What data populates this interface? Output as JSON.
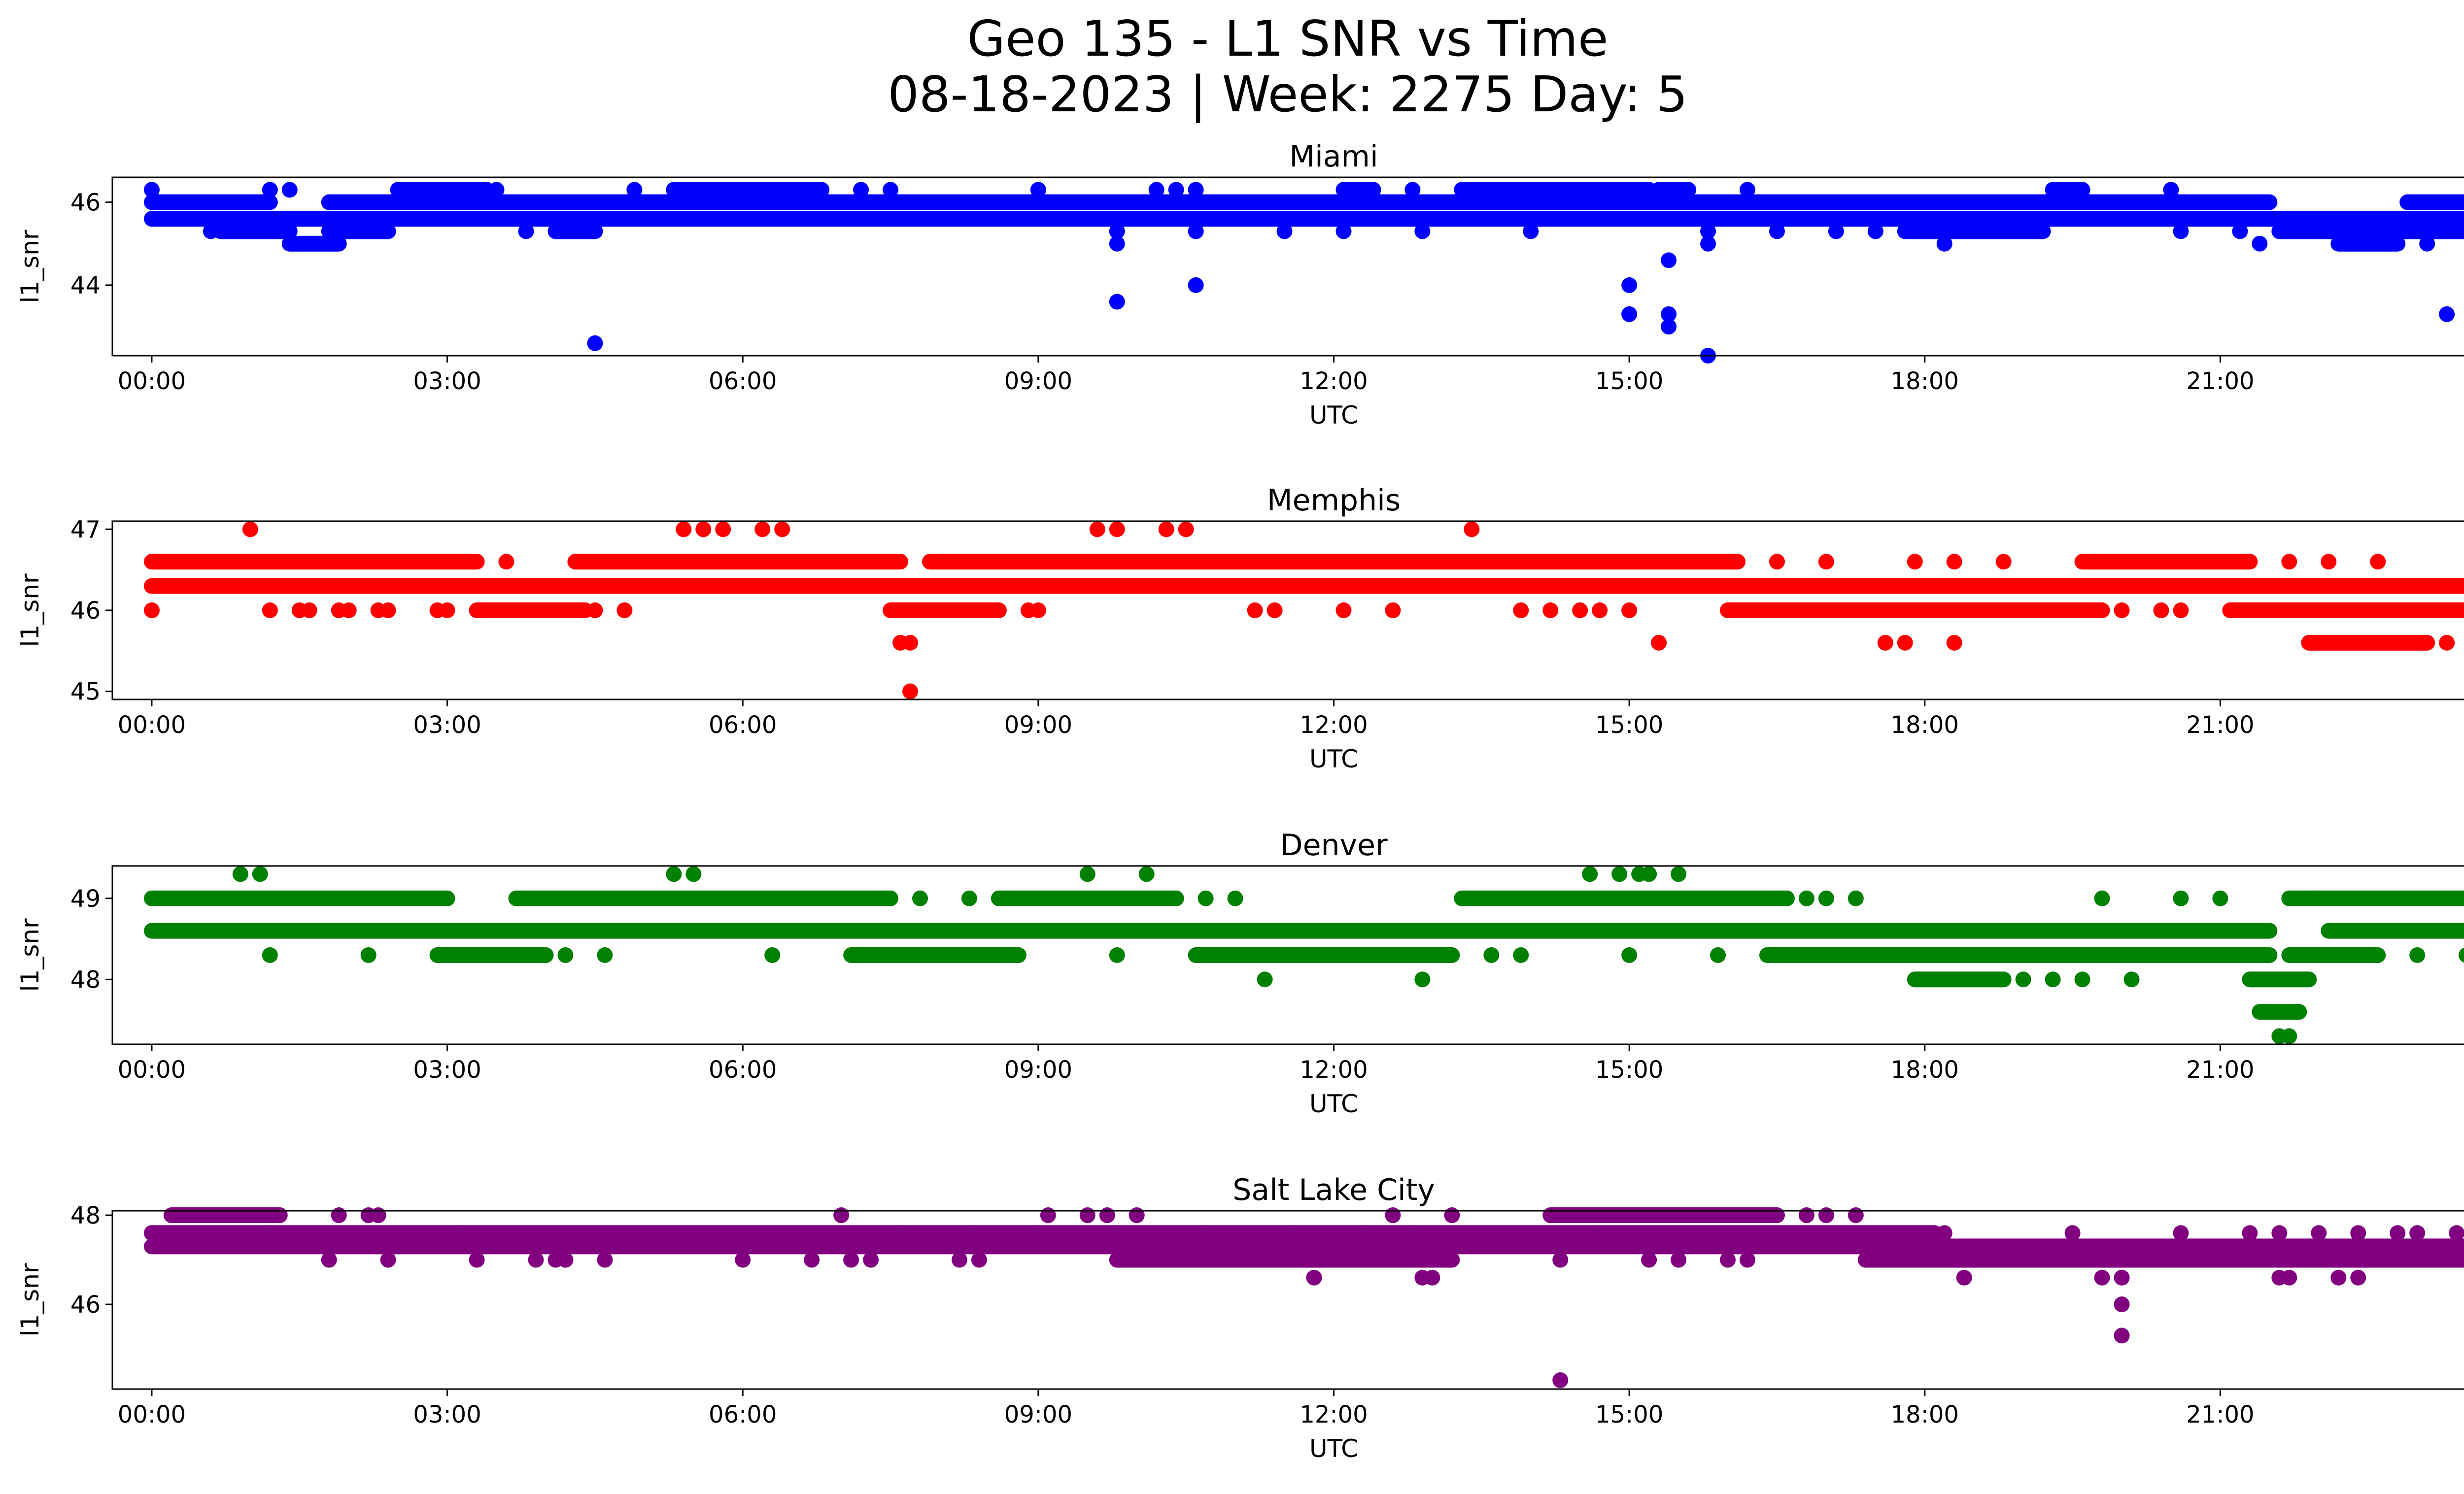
{
  "figure": {
    "title_line1": "Geo 135 - L1 SNR vs Time",
    "title_line2": "08-18-2023 | Week: 2275 Day: 5"
  },
  "chart_data": [
    {
      "type": "scatter",
      "title": "Miami",
      "xlabel": "UTC",
      "ylabel": "l1_snr",
      "color": "#0000ff",
      "xlim": [
        -0.4,
        24.4
      ],
      "ylim": [
        42.3,
        46.6
      ],
      "xticks": [
        "00:00",
        "03:00",
        "06:00",
        "09:00",
        "12:00",
        "15:00",
        "18:00",
        "21:00",
        "00:00"
      ],
      "xtick_values": [
        0,
        3,
        6,
        9,
        12,
        15,
        18,
        21,
        24
      ],
      "yticks": [
        44,
        46
      ],
      "grid": false,
      "bands": [
        {
          "y": 45.6,
          "ranges": [
            [
              0,
              24
            ]
          ]
        },
        {
          "y": 46.0,
          "ranges": [
            [
              0,
              1.2
            ],
            [
              1.8,
              4.7
            ],
            [
              4.4,
              21.5
            ],
            [
              22.9,
              24
            ]
          ]
        },
        {
          "y": 45.3,
          "ranges": [
            [
              0.7,
              1.4
            ],
            [
              1.8,
              2.4
            ],
            [
              4.1,
              4.5
            ],
            [
              17.8,
              19.2
            ],
            [
              21.6,
              24
            ]
          ]
        },
        {
          "y": 46.3,
          "ranges": [
            [
              2.5,
              3.4
            ],
            [
              5.3,
              6.8
            ],
            [
              12.1,
              12.4
            ],
            [
              13.3,
              15.2
            ],
            [
              15.3,
              15.6
            ],
            [
              19.3,
              19.6
            ]
          ]
        },
        {
          "y": 45.0,
          "ranges": [
            [
              1.4,
              1.9
            ],
            [
              22.2,
              22.8
            ]
          ]
        }
      ],
      "points": [
        [
          0.0,
          46.3
        ],
        [
          1.2,
          46.3
        ],
        [
          1.4,
          46.3
        ],
        [
          3.5,
          46.3
        ],
        [
          4.9,
          46.3
        ],
        [
          5.4,
          46.3
        ],
        [
          6.2,
          46.3
        ],
        [
          7.2,
          46.3
        ],
        [
          7.5,
          46.3
        ],
        [
          9.0,
          46.3
        ],
        [
          10.2,
          46.3
        ],
        [
          10.4,
          46.3
        ],
        [
          10.6,
          46.3
        ],
        [
          12.4,
          46.3
        ],
        [
          12.8,
          46.3
        ],
        [
          15.5,
          46.3
        ],
        [
          16.2,
          46.3
        ],
        [
          19.4,
          46.3
        ],
        [
          20.5,
          46.3
        ],
        [
          0.6,
          45.3
        ],
        [
          3.8,
          45.3
        ],
        [
          9.8,
          45.3
        ],
        [
          11.5,
          45.3
        ],
        [
          12.1,
          45.3
        ],
        [
          12.9,
          45.3
        ],
        [
          14.0,
          45.3
        ],
        [
          16.5,
          45.3
        ],
        [
          17.1,
          45.3
        ],
        [
          17.5,
          45.3
        ],
        [
          10.6,
          45.3
        ],
        [
          15.8,
          45.3
        ],
        [
          20.6,
          45.3
        ],
        [
          21.2,
          45.3
        ],
        [
          22.9,
          45.3
        ],
        [
          23.4,
          45.3
        ],
        [
          23.8,
          45.3
        ],
        [
          9.8,
          45.0
        ],
        [
          15.8,
          45.0
        ],
        [
          18.2,
          45.0
        ],
        [
          21.4,
          45.0
        ],
        [
          23.1,
          45.0
        ],
        [
          4.5,
          42.6
        ],
        [
          9.8,
          43.6
        ],
        [
          10.6,
          44.0
        ],
        [
          15.0,
          44.0
        ],
        [
          15.0,
          43.3
        ],
        [
          15.4,
          43.3
        ],
        [
          15.4,
          43.0
        ],
        [
          15.4,
          44.6
        ],
        [
          15.8,
          42.3
        ],
        [
          23.3,
          43.3
        ]
      ]
    },
    {
      "type": "scatter",
      "title": "Memphis",
      "xlabel": "UTC",
      "ylabel": "l1_snr",
      "color": "#ff0000",
      "xlim": [
        -0.4,
        24.4
      ],
      "ylim": [
        44.9,
        47.1
      ],
      "xticks": [
        "00:00",
        "03:00",
        "06:00",
        "09:00",
        "12:00",
        "15:00",
        "18:00",
        "21:00",
        "00:00"
      ],
      "xtick_values": [
        0,
        3,
        6,
        9,
        12,
        15,
        18,
        21,
        24
      ],
      "yticks": [
        45,
        46,
        47
      ],
      "grid": false,
      "bands": [
        {
          "y": 46.3,
          "ranges": [
            [
              0,
              24
            ]
          ]
        },
        {
          "y": 46.6,
          "ranges": [
            [
              0,
              3.3
            ],
            [
              4.3,
              7.6
            ],
            [
              7.9,
              16.1
            ],
            [
              19.6,
              21.3
            ]
          ]
        },
        {
          "y": 46.0,
          "ranges": [
            [
              3.3,
              4.4
            ],
            [
              7.5,
              8.6
            ],
            [
              16.0,
              19.8
            ],
            [
              21.1,
              24
            ]
          ]
        },
        {
          "y": 45.6,
          "ranges": [
            [
              21.9,
              23.1
            ]
          ]
        }
      ],
      "points": [
        [
          0.0,
          46.0
        ],
        [
          1.2,
          46.0
        ],
        [
          1.5,
          46.0
        ],
        [
          1.6,
          46.0
        ],
        [
          1.9,
          46.0
        ],
        [
          2.0,
          46.0
        ],
        [
          2.3,
          46.0
        ],
        [
          2.4,
          46.0
        ],
        [
          2.9,
          46.0
        ],
        [
          3.0,
          46.0
        ],
        [
          4.5,
          46.0
        ],
        [
          4.8,
          46.0
        ],
        [
          8.9,
          46.0
        ],
        [
          9.0,
          46.0
        ],
        [
          11.2,
          46.0
        ],
        [
          11.4,
          46.0
        ],
        [
          12.1,
          46.0
        ],
        [
          12.6,
          46.0
        ],
        [
          13.9,
          46.0
        ],
        [
          14.2,
          46.0
        ],
        [
          14.5,
          46.0
        ],
        [
          14.7,
          46.0
        ],
        [
          15.0,
          46.0
        ],
        [
          20.0,
          46.0
        ],
        [
          20.4,
          46.0
        ],
        [
          20.6,
          46.0
        ],
        [
          1.0,
          47.0
        ],
        [
          5.4,
          47.0
        ],
        [
          5.6,
          47.0
        ],
        [
          5.8,
          47.0
        ],
        [
          6.2,
          47.0
        ],
        [
          6.4,
          47.0
        ],
        [
          9.6,
          47.0
        ],
        [
          9.8,
          47.0
        ],
        [
          10.3,
          47.0
        ],
        [
          10.5,
          47.0
        ],
        [
          13.4,
          47.0
        ],
        [
          3.6,
          46.6
        ],
        [
          16.5,
          46.6
        ],
        [
          17.0,
          46.6
        ],
        [
          17.9,
          46.6
        ],
        [
          18.3,
          46.6
        ],
        [
          18.8,
          46.6
        ],
        [
          21.7,
          46.6
        ],
        [
          22.1,
          46.6
        ],
        [
          22.6,
          46.6
        ],
        [
          23.8,
          46.6
        ],
        [
          7.6,
          45.6
        ],
        [
          7.7,
          45.6
        ],
        [
          15.3,
          45.6
        ],
        [
          17.6,
          45.6
        ],
        [
          17.8,
          45.6
        ],
        [
          18.3,
          45.6
        ],
        [
          23.3,
          45.6
        ],
        [
          7.7,
          45.0
        ]
      ]
    },
    {
      "type": "scatter",
      "title": "Denver",
      "xlabel": "UTC",
      "ylabel": "l1_snr",
      "color": "#008000",
      "xlim": [
        -0.4,
        24.4
      ],
      "ylim": [
        47.2,
        49.4
      ],
      "xticks": [
        "00:00",
        "03:00",
        "06:00",
        "09:00",
        "12:00",
        "15:00",
        "18:00",
        "21:00",
        "00:00"
      ],
      "xtick_values": [
        0,
        3,
        6,
        9,
        12,
        15,
        18,
        21,
        24
      ],
      "yticks": [
        48,
        49
      ],
      "grid": false,
      "bands": [
        {
          "y": 48.6,
          "ranges": [
            [
              0,
              21.5
            ],
            [
              22.1,
              24
            ]
          ]
        },
        {
          "y": 49.0,
          "ranges": [
            [
              0,
              3.0
            ],
            [
              3.7,
              7.5
            ],
            [
              8.6,
              10.4
            ],
            [
              13.3,
              16.6
            ],
            [
              21.7,
              24
            ]
          ]
        },
        {
          "y": 48.3,
          "ranges": [
            [
              2.9,
              4.0
            ],
            [
              7.1,
              8.8
            ],
            [
              10.6,
              13.2
            ],
            [
              16.4,
              21.5
            ],
            [
              21.7,
              22.6
            ]
          ]
        },
        {
          "y": 48.0,
          "ranges": [
            [
              17.9,
              18.8
            ],
            [
              21.3,
              21.9
            ]
          ]
        },
        {
          "y": 47.6,
          "ranges": [
            [
              21.4,
              21.8
            ]
          ]
        }
      ],
      "points": [
        [
          0.9,
          49.3
        ],
        [
          1.1,
          49.3
        ],
        [
          5.3,
          49.3
        ],
        [
          5.5,
          49.3
        ],
        [
          9.5,
          49.3
        ],
        [
          10.1,
          49.3
        ],
        [
          14.6,
          49.3
        ],
        [
          14.9,
          49.3
        ],
        [
          15.1,
          49.3
        ],
        [
          15.2,
          49.3
        ],
        [
          15.5,
          49.3
        ],
        [
          23.7,
          49.3
        ],
        [
          23.9,
          49.3
        ],
        [
          24.0,
          49.3
        ],
        [
          7.8,
          49.0
        ],
        [
          8.3,
          49.0
        ],
        [
          10.7,
          49.0
        ],
        [
          11.0,
          49.0
        ],
        [
          16.8,
          49.0
        ],
        [
          17.0,
          49.0
        ],
        [
          17.3,
          49.0
        ],
        [
          19.8,
          49.0
        ],
        [
          20.6,
          49.0
        ],
        [
          21.0,
          49.0
        ],
        [
          22.0,
          49.0
        ],
        [
          1.2,
          48.3
        ],
        [
          2.2,
          48.3
        ],
        [
          4.2,
          48.3
        ],
        [
          4.6,
          48.3
        ],
        [
          6.3,
          48.3
        ],
        [
          9.8,
          48.3
        ],
        [
          13.6,
          48.3
        ],
        [
          13.9,
          48.3
        ],
        [
          15.0,
          48.3
        ],
        [
          15.9,
          48.3
        ],
        [
          23.0,
          48.3
        ],
        [
          23.5,
          48.3
        ],
        [
          11.3,
          48.0
        ],
        [
          12.9,
          48.0
        ],
        [
          19.0,
          48.0
        ],
        [
          19.3,
          48.0
        ],
        [
          19.6,
          48.0
        ],
        [
          20.1,
          48.0
        ],
        [
          21.6,
          47.3
        ],
        [
          21.7,
          47.3
        ]
      ]
    },
    {
      "type": "scatter",
      "title": "Salt Lake City",
      "xlabel": "UTC",
      "ylabel": "l1_snr",
      "color": "#800080",
      "xlim": [
        -0.4,
        24.4
      ],
      "ylim": [
        44.1,
        48.1
      ],
      "xticks": [
        "00:00",
        "03:00",
        "06:00",
        "09:00",
        "12:00",
        "15:00",
        "18:00",
        "21:00",
        "00:00"
      ],
      "xtick_values": [
        0,
        3,
        6,
        9,
        12,
        15,
        18,
        21,
        24
      ],
      "yticks": [
        46,
        48
      ],
      "grid": false,
      "bands": [
        {
          "y": 47.6,
          "ranges": [
            [
              0,
              18.1
            ]
          ]
        },
        {
          "y": 47.3,
          "ranges": [
            [
              0,
              24
            ]
          ]
        },
        {
          "y": 47.0,
          "ranges": [
            [
              9.8,
              13.2
            ],
            [
              17.4,
              24
            ]
          ]
        },
        {
          "y": 48.0,
          "ranges": [
            [
              0.2,
              1.3
            ],
            [
              14.2,
              16.5
            ]
          ]
        }
      ],
      "points": [
        [
          0.0,
          47.6
        ],
        [
          1.2,
          47.6
        ],
        [
          3.1,
          47.6
        ],
        [
          7.6,
          47.6
        ],
        [
          8.3,
          47.6
        ],
        [
          9.0,
          47.6
        ],
        [
          9.8,
          47.6
        ],
        [
          10.7,
          47.6
        ],
        [
          11.6,
          47.6
        ],
        [
          12.3,
          47.6
        ],
        [
          12.8,
          47.6
        ],
        [
          14.7,
          47.6
        ],
        [
          18.2,
          47.6
        ],
        [
          19.5,
          47.6
        ],
        [
          20.6,
          47.6
        ],
        [
          21.3,
          47.6
        ],
        [
          21.6,
          47.6
        ],
        [
          22.0,
          47.6
        ],
        [
          22.4,
          47.6
        ],
        [
          22.8,
          47.6
        ],
        [
          23.0,
          47.6
        ],
        [
          23.4,
          47.6
        ],
        [
          23.7,
          47.6
        ],
        [
          24.0,
          47.6
        ],
        [
          0.9,
          48.0
        ],
        [
          1.9,
          48.0
        ],
        [
          2.2,
          48.0
        ],
        [
          2.3,
          48.0
        ],
        [
          7.0,
          48.0
        ],
        [
          9.1,
          48.0
        ],
        [
          9.5,
          48.0
        ],
        [
          9.7,
          48.0
        ],
        [
          10.0,
          48.0
        ],
        [
          12.6,
          48.0
        ],
        [
          13.2,
          48.0
        ],
        [
          16.8,
          48.0
        ],
        [
          17.0,
          48.0
        ],
        [
          17.3,
          48.0
        ],
        [
          1.8,
          47.0
        ],
        [
          2.4,
          47.0
        ],
        [
          3.3,
          47.0
        ],
        [
          3.9,
          47.0
        ],
        [
          4.1,
          47.0
        ],
        [
          4.2,
          47.0
        ],
        [
          4.6,
          47.0
        ],
        [
          6.0,
          47.0
        ],
        [
          6.7,
          47.0
        ],
        [
          7.1,
          47.0
        ],
        [
          7.3,
          47.0
        ],
        [
          8.2,
          47.0
        ],
        [
          8.4,
          47.0
        ],
        [
          14.3,
          47.0
        ],
        [
          16.0,
          47.0
        ],
        [
          15.2,
          47.0
        ],
        [
          15.5,
          47.0
        ],
        [
          16.2,
          47.0
        ],
        [
          11.8,
          46.6
        ],
        [
          12.9,
          46.6
        ],
        [
          13.0,
          46.6
        ],
        [
          18.4,
          46.6
        ],
        [
          19.8,
          46.6
        ],
        [
          20.0,
          46.6
        ],
        [
          21.6,
          46.6
        ],
        [
          21.7,
          46.6
        ],
        [
          22.2,
          46.6
        ],
        [
          22.4,
          46.6
        ],
        [
          20.0,
          46.0
        ],
        [
          20.0,
          45.3
        ],
        [
          14.3,
          44.3
        ]
      ]
    }
  ]
}
